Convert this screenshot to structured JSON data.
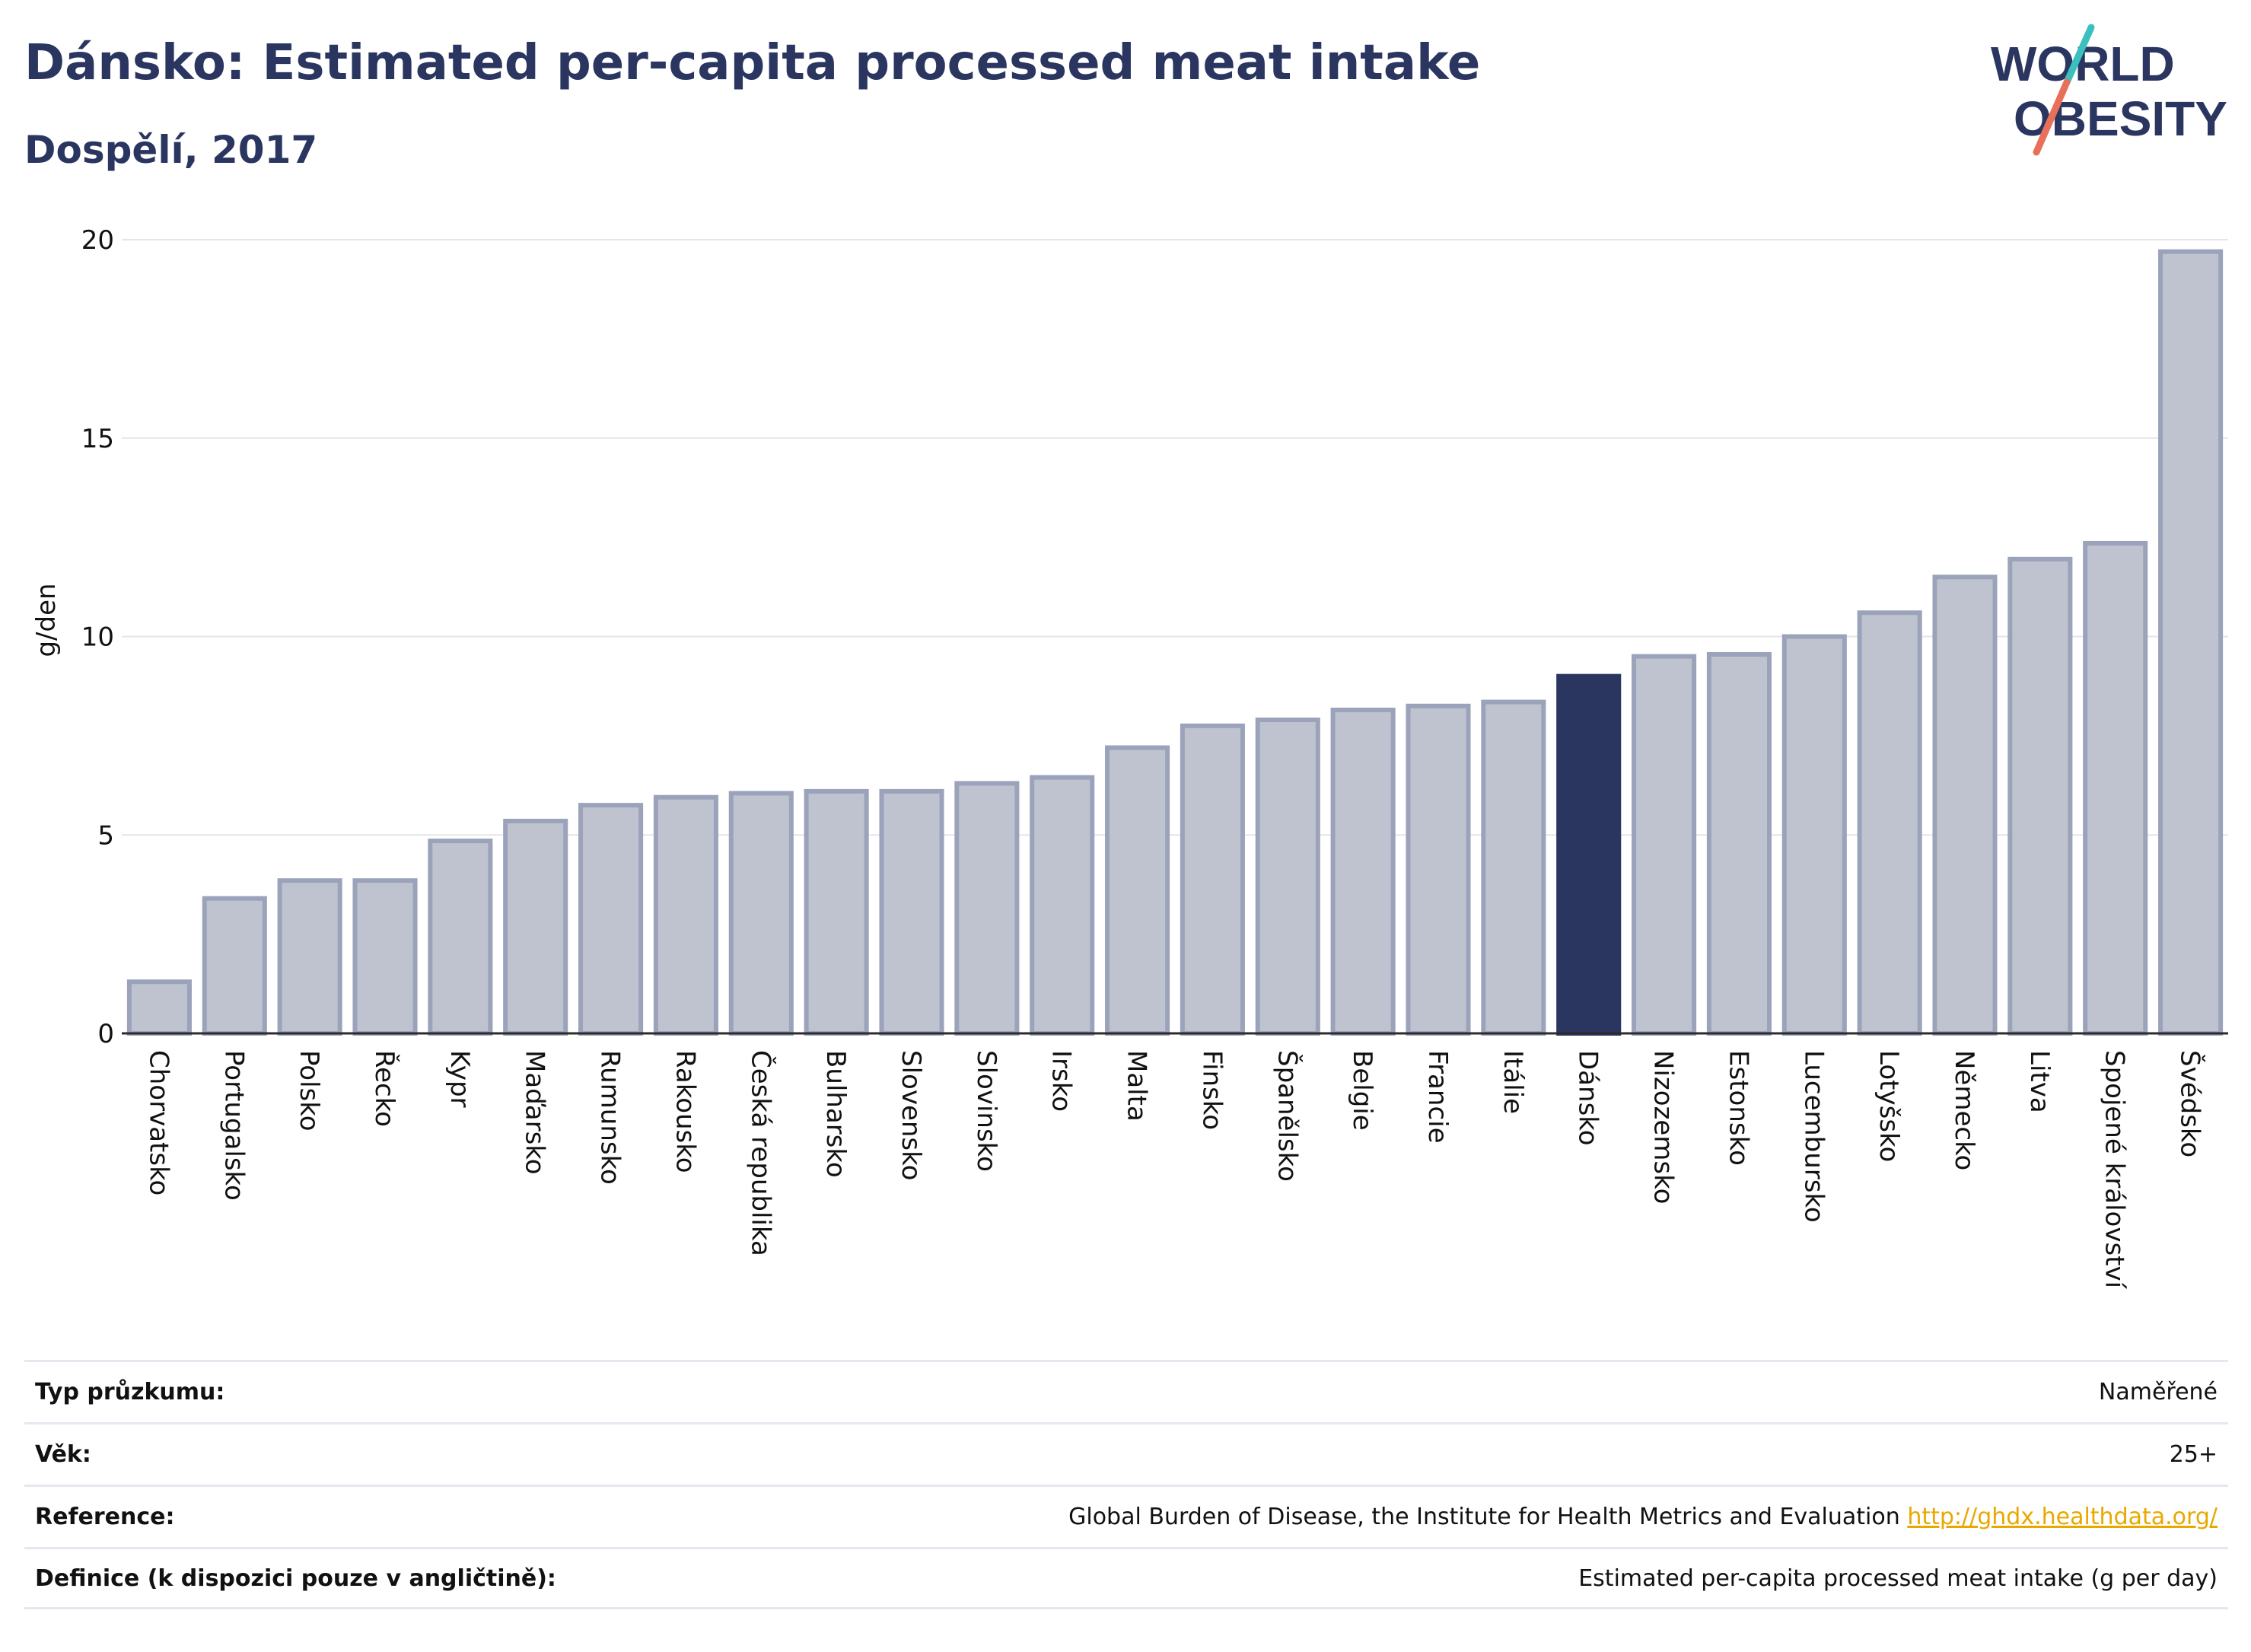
{
  "header": {
    "title": "Dánsko: Estimated per-capita processed meat intake",
    "subtitle": "Dospělí, 2017"
  },
  "logo": {
    "line1": "WORLD",
    "line2": "OBESITY",
    "colors": {
      "text": "#2a3560",
      "slash_top": "#3bbfbf",
      "slash_bottom": "#e8705a"
    }
  },
  "chart_data": {
    "type": "bar",
    "ylabel": "g/den",
    "ylim": [
      0,
      20
    ],
    "yticks": [
      0,
      5,
      10,
      15,
      20
    ],
    "grid": true,
    "highlight": "Dánsko",
    "colors": {
      "bar": "#bfc3cf",
      "bar_border": "#9ba3bb",
      "highlight": "#2a3560"
    },
    "categories": [
      "Chorvatsko",
      "Portugalsko",
      "Polsko",
      "Řecko",
      "Kypr",
      "Maďarsko",
      "Rumunsko",
      "Rakousko",
      "Česká republika",
      "Bulharsko",
      "Slovensko",
      "Slovinsko",
      "Irsko",
      "Malta",
      "Finsko",
      "Španělsko",
      "Belgie",
      "Francie",
      "Itálie",
      "Dánsko",
      "Nizozemsko",
      "Estonsko",
      "Lucembursko",
      "Lotyšsko",
      "Německo",
      "Litva",
      "Spojené království",
      "Švédsko"
    ],
    "values": [
      1.3,
      3.4,
      3.85,
      3.85,
      4.85,
      5.35,
      5.75,
      5.95,
      6.05,
      6.1,
      6.1,
      6.3,
      6.45,
      7.2,
      7.75,
      7.9,
      8.15,
      8.25,
      8.35,
      9.0,
      9.5,
      9.55,
      10.0,
      10.6,
      11.5,
      11.95,
      12.35,
      19.7
    ]
  },
  "info": {
    "rows": [
      {
        "label": "Typ průzkumu:",
        "value": "Naměřené"
      },
      {
        "label": "Věk:",
        "value": "25+"
      },
      {
        "label": "Reference:",
        "value": "Global Burden of Disease, the Institute for Health Metrics and Evaluation",
        "link": "http://ghdx.healthdata.org/"
      },
      {
        "label": "Definice (k dispozici pouze v angličtině):",
        "value": "Estimated per-capita processed meat intake (g per day)"
      }
    ]
  }
}
